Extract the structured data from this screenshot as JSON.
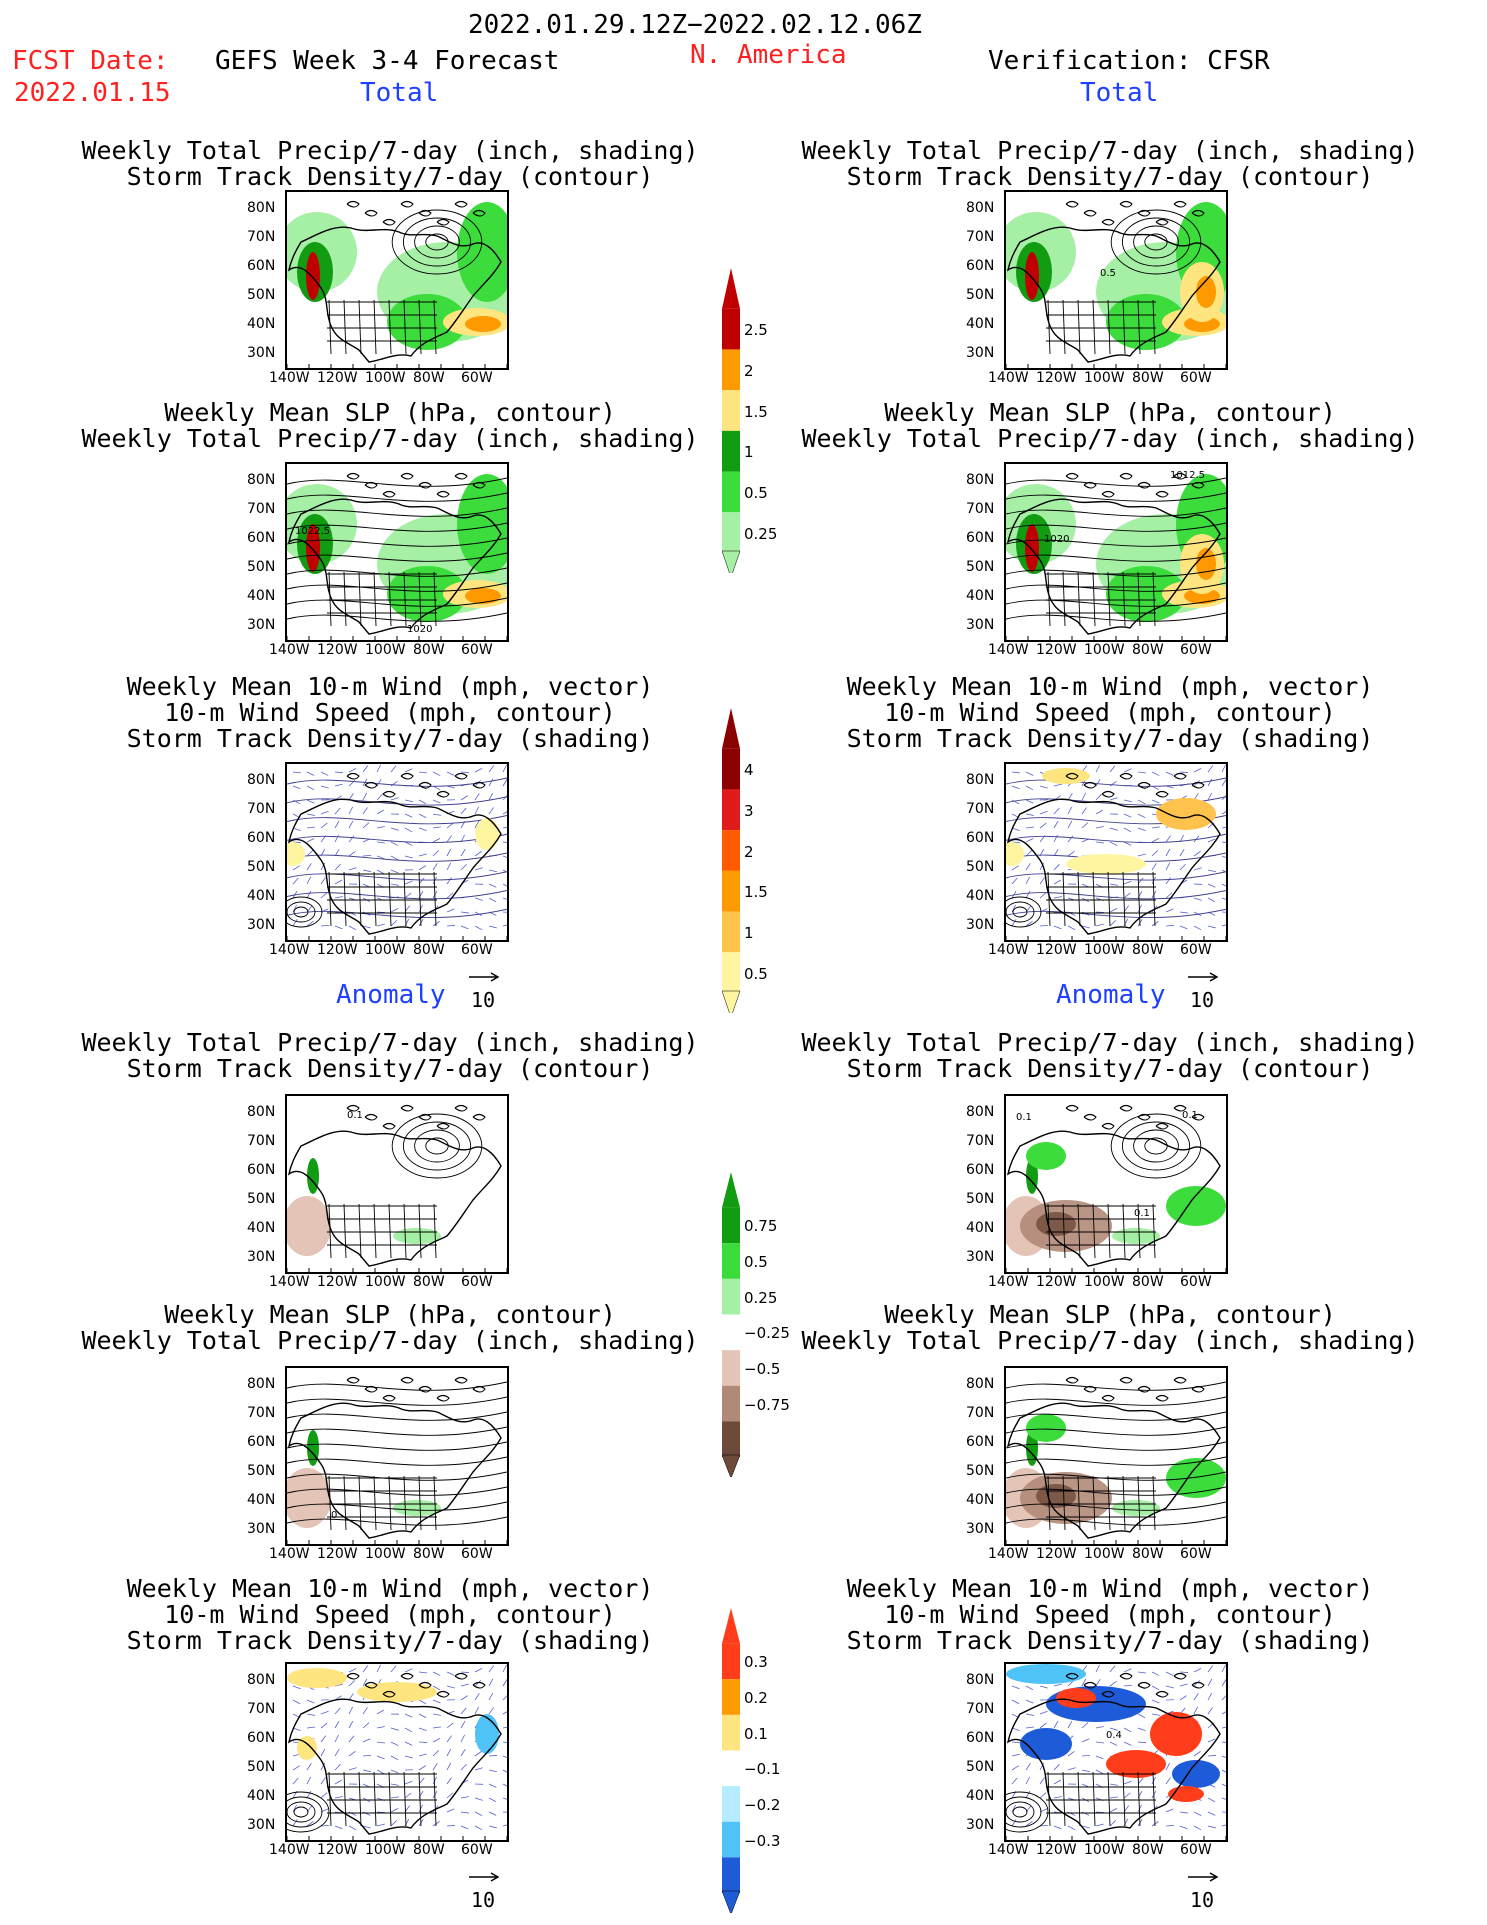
{
  "header": {
    "date_range": "2022.01.29.12Z−2022.02.12.06Z",
    "fcst_label": "FCST Date:",
    "fcst_date": "2022.01.15",
    "forecast_title": "GEFS Week 3-4 Forecast",
    "region": "N. America",
    "verification": "Verification: CFSR"
  },
  "sections": {
    "total_left": "Total",
    "total_right": "Total",
    "anomaly_left": "Anomaly",
    "anomaly_right": "Anomaly"
  },
  "panel_titles": {
    "precip_storm": [
      "Weekly Total Precip/7-day (inch, shading)",
      "Storm Track Density/7-day (contour)"
    ],
    "slp_precip": [
      "Weekly Mean SLP (hPa, contour)",
      "Weekly Total Precip/7-day (inch, shading)"
    ],
    "wind_storm": [
      "Weekly Mean 10-m Wind (mph, vector)",
      "10-m Wind Speed (mph, contour)",
      "Storm Track Density/7-day (shading)"
    ]
  },
  "axes": {
    "lat_labels": [
      "80N",
      "70N",
      "60N",
      "50N",
      "40N",
      "30N"
    ],
    "lon_labels": [
      "140W",
      "120W",
      "100W",
      "80W",
      "60W"
    ]
  },
  "vector_ref": "10",
  "contour_labels": {
    "total_fcst_precip": "",
    "total_obs_precip": "0.5",
    "total_fcst_slp": [
      "1022.5",
      "1020"
    ],
    "total_obs_slp": [
      "1012.5",
      "1020"
    ],
    "anom_fcst_precip": "0.1",
    "anom_obs_precip": [
      "0.1",
      "0.1",
      "0.1"
    ],
    "anom_fcst_slp": "0",
    "anom_obs_wind": "0.4"
  },
  "colorbars": {
    "total_precip": {
      "labels": [
        "2.5",
        "2",
        "1.5",
        "1",
        "0.5",
        "0.25"
      ],
      "colors": [
        "#c00000",
        "#ff9900",
        "#ffe57f",
        "#129c12",
        "#3ddc3d",
        "#a6f0a6"
      ]
    },
    "total_storm": {
      "labels": [
        "4",
        "3",
        "2",
        "1.5",
        "1",
        "0.5"
      ],
      "colors": [
        "#8b0000",
        "#e11b1b",
        "#ff5a00",
        "#ff9900",
        "#ffc34d",
        "#fff5a0"
      ]
    },
    "anom_precip": {
      "labels": [
        "0.75",
        "0.5",
        "0.25",
        "−0.25",
        "−0.5",
        "−0.75"
      ],
      "colors": [
        "#129c12",
        "#3ddc3d",
        "#a6f0a6",
        "#ffffff",
        "#e3c4b6",
        "#b08978",
        "#6e4a3a"
      ]
    },
    "anom_storm": {
      "labels": [
        "0.3",
        "0.2",
        "0.1",
        "−0.1",
        "−0.2",
        "−0.3"
      ],
      "colors": [
        "#ff3d1a",
        "#ff9a00",
        "#ffe57f",
        "#ffffff",
        "#b6ecff",
        "#4fc3f7",
        "#1e5bd8"
      ]
    }
  }
}
